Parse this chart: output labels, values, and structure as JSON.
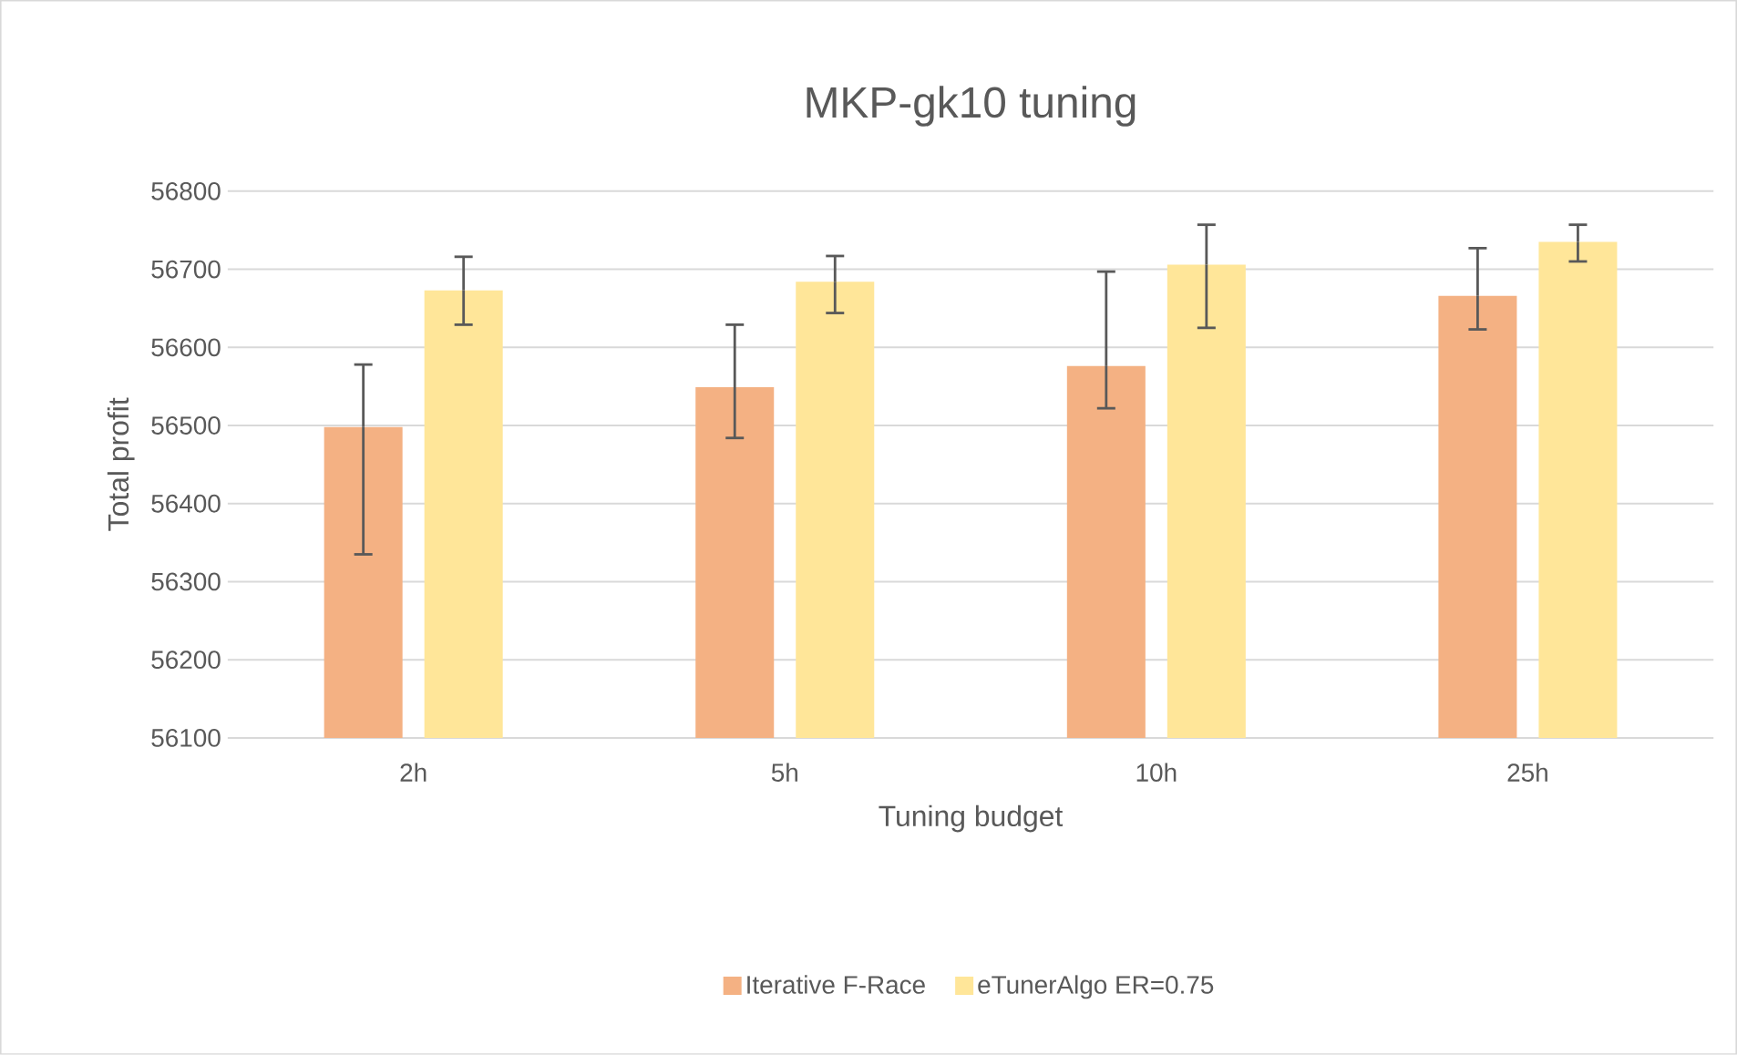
{
  "chart_data": {
    "type": "bar",
    "title": "MKP-gk10 tuning",
    "xlabel": "Tuning budget",
    "ylabel": "Total profit",
    "categories": [
      "2h",
      "5h",
      "10h",
      "25h"
    ],
    "series": [
      {
        "name": "Iterative F-Race",
        "color": "#f4b183",
        "values": [
          56498,
          56549,
          56576,
          56666
        ],
        "errors": [
          [
            56335,
            56578
          ],
          [
            56484,
            56629
          ],
          [
            56522,
            56697
          ],
          [
            56623,
            56727
          ]
        ]
      },
      {
        "name": "eTunerAlgo ER=0.75",
        "color": "#ffe699",
        "values": [
          56673,
          56684,
          56706,
          56735
        ],
        "errors": [
          [
            56629,
            56716
          ],
          [
            56644,
            56717
          ],
          [
            56625,
            56757
          ],
          [
            56710,
            56757
          ]
        ]
      }
    ],
    "ylim": [
      56100,
      56800
    ],
    "yticks": [
      56100,
      56200,
      56300,
      56400,
      56500,
      56600,
      56700,
      56800
    ],
    "grid": "y",
    "legend": "bottom"
  }
}
